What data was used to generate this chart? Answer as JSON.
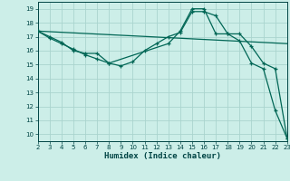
{
  "background_color": "#cceee8",
  "grid_color": "#aad4ce",
  "line_color": "#006655",
  "xlabel": "Humidex (Indice chaleur)",
  "xlim": [
    2,
    23
  ],
  "ylim": [
    9.5,
    19.5
  ],
  "xticks": [
    2,
    3,
    4,
    5,
    6,
    7,
    8,
    9,
    10,
    11,
    12,
    13,
    14,
    15,
    16,
    17,
    18,
    19,
    20,
    21,
    22,
    23
  ],
  "yticks": [
    10,
    11,
    12,
    13,
    14,
    15,
    16,
    17,
    18,
    19
  ],
  "line1_x": [
    2,
    3,
    4,
    5,
    6,
    7,
    8,
    9,
    10,
    11,
    12,
    13,
    14,
    15,
    16,
    17,
    18,
    19,
    20,
    21,
    22,
    23
  ],
  "line1_y": [
    17.4,
    17.0,
    16.6,
    16.0,
    15.8,
    15.8,
    15.1,
    14.9,
    15.2,
    16.0,
    16.5,
    17.0,
    17.3,
    18.8,
    18.8,
    18.5,
    17.2,
    17.2,
    16.3,
    15.1,
    14.7,
    9.7
  ],
  "line2_x": [
    2,
    3,
    4,
    5,
    6,
    7,
    8,
    13,
    14,
    15,
    16,
    17,
    18,
    19,
    20,
    21,
    22,
    23
  ],
  "line2_y": [
    17.4,
    16.9,
    16.5,
    16.1,
    15.7,
    15.4,
    15.1,
    16.5,
    17.4,
    19.0,
    19.0,
    17.2,
    17.2,
    16.7,
    15.1,
    14.7,
    11.7,
    9.7
  ],
  "line3_x": [
    2,
    23
  ],
  "line3_y": [
    17.4,
    16.5
  ]
}
